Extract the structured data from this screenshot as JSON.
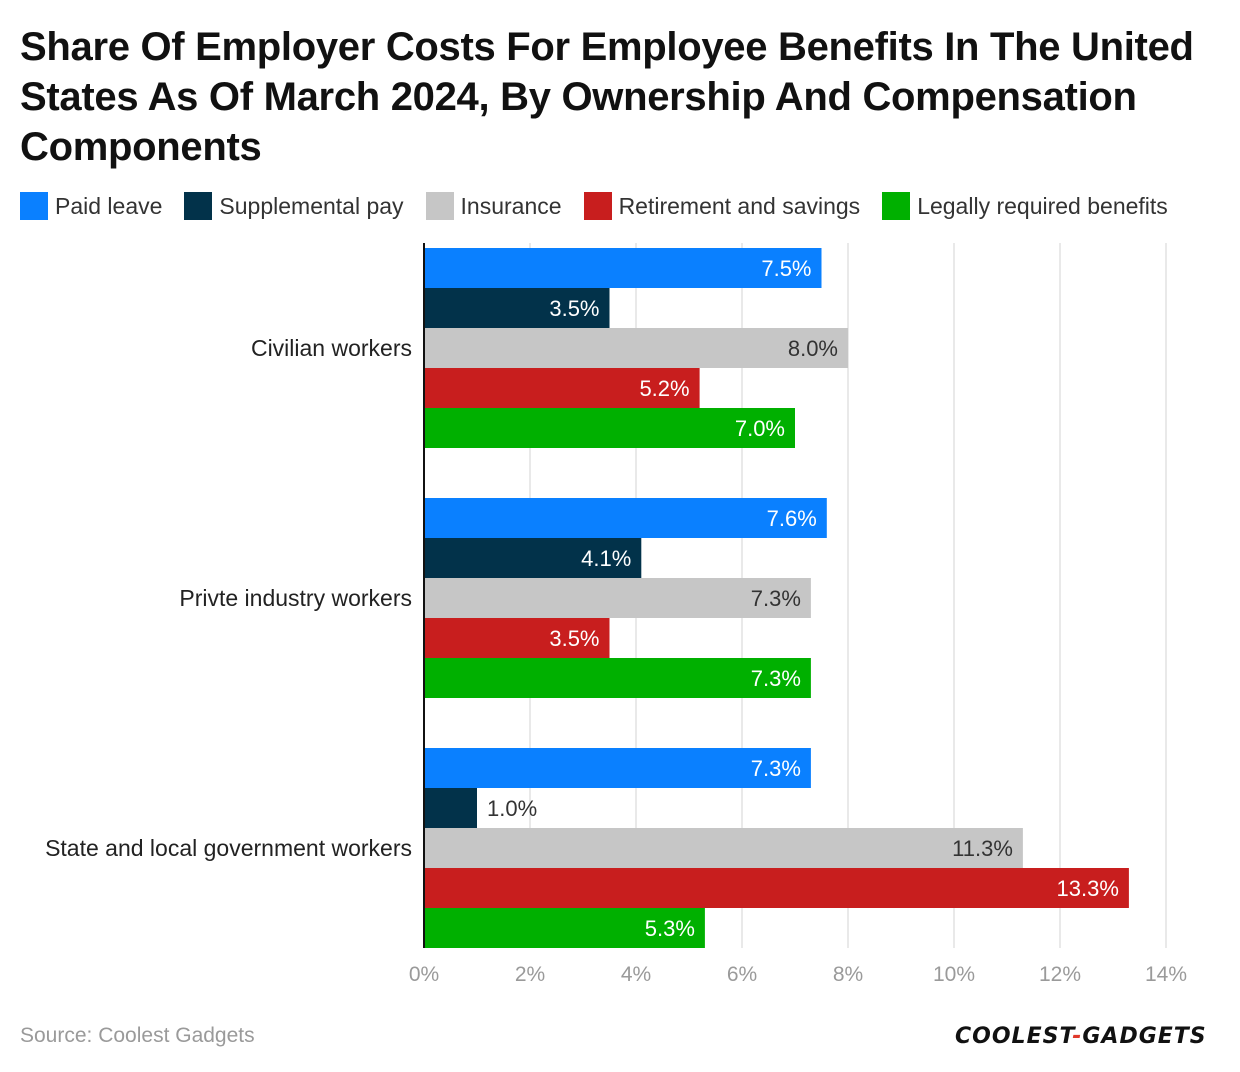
{
  "title": "Share Of Employer Costs For Employee Benefits In The United States As Of March 2024, By Ownership And Compensation Components",
  "source": "Source: Coolest Gadgets",
  "logo_text": "COOLEST-GADGETS",
  "chart_data": {
    "type": "bar",
    "orientation": "horizontal",
    "title": "Share Of Employer Costs For Employee Benefits In The United States As Of March 2024, By Ownership And Compensation Components",
    "categories": [
      "Civilian workers",
      "Privte industry workers",
      "State and local government workers"
    ],
    "series": [
      {
        "name": "Paid leave",
        "color": "#0a80ff",
        "values": [
          7.5,
          7.6,
          7.3
        ],
        "labels": [
          "7.5%",
          "7.6%",
          "7.3%"
        ]
      },
      {
        "name": "Supplemental pay",
        "color": "#02324a",
        "values": [
          3.5,
          4.1,
          1.0
        ],
        "labels": [
          "3.5%",
          "4.1%",
          "1.0%"
        ]
      },
      {
        "name": "Insurance",
        "color": "#c6c6c6",
        "values": [
          8.0,
          7.3,
          11.3
        ],
        "labels": [
          "8.0%",
          "7.3%",
          "11.3%"
        ]
      },
      {
        "name": "Retirement and savings",
        "color": "#c81e1e",
        "values": [
          5.2,
          3.5,
          13.3
        ],
        "labels": [
          "5.2%",
          "3.5%",
          "13.3%"
        ]
      },
      {
        "name": "Legally required benefits",
        "color": "#00b000",
        "values": [
          7.0,
          7.3,
          5.3
        ],
        "labels": [
          "7.0%",
          "7.3%",
          "5.3%"
        ]
      }
    ],
    "xlim": [
      0,
      14
    ],
    "x_ticks": [
      0,
      2,
      4,
      6,
      8,
      10,
      12,
      14
    ],
    "x_tick_labels": [
      "0%",
      "2%",
      "4%",
      "6%",
      "8%",
      "10%",
      "12%",
      "14%"
    ],
    "grid": true,
    "legend_position": "top-left"
  }
}
